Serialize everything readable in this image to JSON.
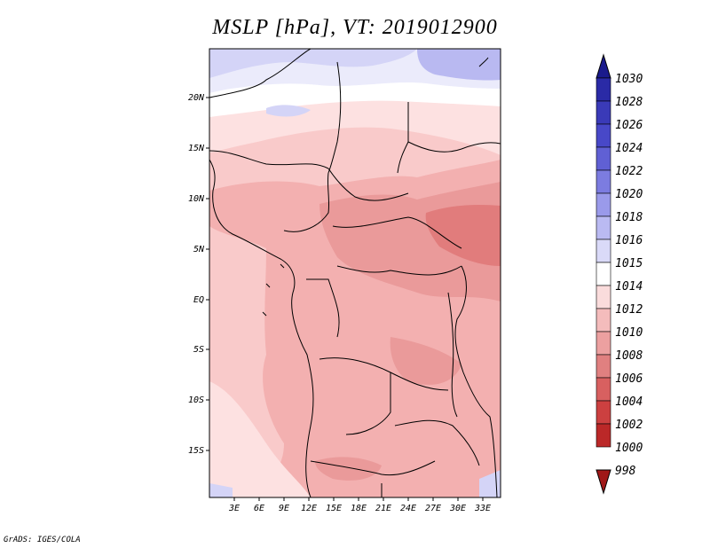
{
  "title": "MSLP [hPa], VT: 2019012900",
  "footer": "GrADS: IGES/COLA",
  "map": {
    "lon_range": [
      0,
      35
    ],
    "lat_range": [
      -20,
      25
    ],
    "lon_ticks": [
      "3E",
      "6E",
      "9E",
      "12E",
      "15E",
      "18E",
      "21E",
      "24E",
      "27E",
      "30E",
      "33E"
    ],
    "lat_ticks": [
      "20N",
      "15N",
      "10N",
      "5N",
      "EQ",
      "5S",
      "10S",
      "15S"
    ]
  },
  "colorbar": {
    "levels": [
      "1030",
      "1028",
      "1026",
      "1024",
      "1022",
      "1020",
      "1018",
      "1016",
      "1015",
      "1014",
      "1012",
      "1010",
      "1008",
      "1006",
      "1004",
      "1002",
      "1000",
      "998"
    ],
    "colors": [
      "#1a1a8c",
      "#2a2aa6",
      "#3a3ab8",
      "#4848c8",
      "#6060d4",
      "#7c7ce0",
      "#9a9aea",
      "#babaf2",
      "#dadaf8",
      "#ffffff",
      "#fadcdc",
      "#f4bcbc",
      "#eca0a0",
      "#e08080",
      "#d86060",
      "#cc4040",
      "#bb2828",
      "#a01818"
    ],
    "field_palette": {
      "cool3": "#b9b9f1",
      "cool2": "#d4d4f7",
      "cool1": "#ebebfb",
      "white": "#ffffff",
      "warm1": "#fde1e1",
      "warm2": "#f9caca",
      "warm3": "#f3b0b0",
      "warm4": "#ea9a9a",
      "warm5": "#e17c7c"
    }
  }
}
